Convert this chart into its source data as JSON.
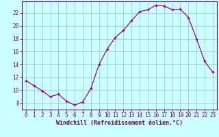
{
  "hours": [
    0,
    1,
    2,
    3,
    4,
    5,
    6,
    7,
    8,
    9,
    10,
    11,
    12,
    13,
    14,
    15,
    16,
    17,
    18,
    19,
    20,
    21,
    22,
    23
  ],
  "values": [
    11.5,
    10.7,
    9.9,
    9.0,
    9.4,
    8.3,
    7.7,
    8.2,
    10.3,
    14.0,
    16.4,
    18.2,
    19.3,
    20.8,
    22.2,
    22.5,
    23.2,
    23.1,
    22.5,
    22.6,
    21.3,
    18.0,
    14.5,
    12.8
  ],
  "xlim": [
    -0.5,
    23.5
  ],
  "ylim": [
    7,
    23.8
  ],
  "yticks": [
    8,
    10,
    12,
    14,
    16,
    18,
    20,
    22
  ],
  "xticks": [
    0,
    1,
    2,
    3,
    4,
    5,
    6,
    7,
    8,
    9,
    10,
    11,
    12,
    13,
    14,
    15,
    16,
    17,
    18,
    19,
    20,
    21,
    22,
    23
  ],
  "xlabel": "Windchill (Refroidissement éolien,°C)",
  "line_color": "#990099",
  "marker": "+",
  "bg_color": "#ccffff",
  "grid_color": "#99cccc",
  "axis_color": "#660066",
  "font_color": "#660066"
}
